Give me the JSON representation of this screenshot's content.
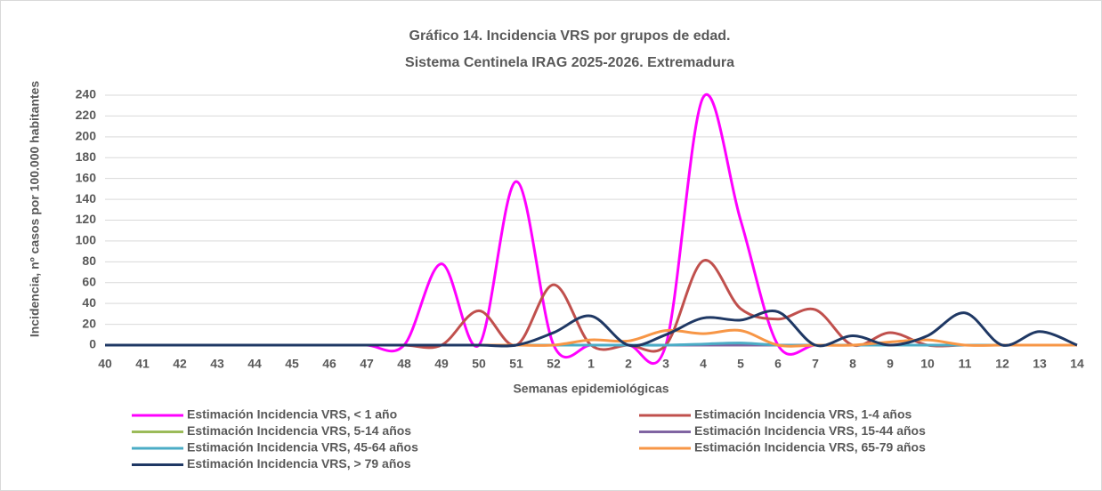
{
  "chart_data": {
    "type": "line",
    "title": "Gráfico 14. Incidencia VRS por grupos de edad.",
    "subtitle": "Sistema Centinela IRAG 2025-2026. Extremadura",
    "x_label": "Semanas epidemiológicas",
    "y_label": "Incidencia, nº casos por 100.000 habitantes",
    "categories": [
      40,
      41,
      42,
      43,
      44,
      45,
      46,
      47,
      48,
      49,
      50,
      51,
      52,
      1,
      2,
      3,
      4,
      5,
      6,
      7,
      8,
      9,
      10,
      11,
      12,
      13,
      14
    ],
    "ylim": [
      0,
      240
    ],
    "yticks": [
      0,
      20,
      40,
      60,
      80,
      100,
      120,
      140,
      160,
      180,
      200,
      220,
      240
    ],
    "grid": true,
    "series": [
      {
        "name": "Estimación Incidencia VRS, < 1 año",
        "color": "#ff00ff",
        "values": [
          0,
          0,
          0,
          0,
          0,
          0,
          0,
          0,
          0,
          78,
          0,
          157,
          0,
          0,
          0,
          0,
          238,
          120,
          0,
          0,
          0,
          0,
          0,
          0,
          0,
          0,
          0
        ]
      },
      {
        "name": "Estimación Incidencia VRS, 1-4 años",
        "color": "#c0504d",
        "values": [
          0,
          0,
          0,
          0,
          0,
          0,
          0,
          0,
          0,
          0,
          33,
          0,
          58,
          0,
          0,
          0,
          81,
          35,
          25,
          34,
          0,
          12,
          0,
          0,
          0,
          0,
          0
        ]
      },
      {
        "name": "Estimación Incidencia VRS, 5-14 años",
        "color": "#9bbb59",
        "values": [
          0,
          0,
          0,
          0,
          0,
          0,
          0,
          0,
          0,
          0,
          0,
          0,
          0,
          0,
          0,
          0,
          0,
          0,
          0,
          0,
          0,
          0,
          0,
          0,
          0,
          0,
          0
        ]
      },
      {
        "name": "Estimación Incidencia VRS, 15-44 años",
        "color": "#8064a2",
        "values": [
          0,
          0,
          0,
          0,
          0,
          0,
          0,
          0,
          0,
          0,
          0,
          0,
          0,
          0,
          0,
          0,
          0,
          0,
          0,
          0,
          0,
          0,
          0,
          0,
          0,
          0,
          0
        ]
      },
      {
        "name": "Estimación Incidencia VRS, 45-64 años",
        "color": "#4bacc6",
        "values": [
          0,
          0,
          0,
          0,
          0,
          0,
          0,
          0,
          0,
          0,
          0,
          0,
          0,
          0,
          0,
          0,
          1,
          2,
          0,
          0,
          0,
          0,
          0,
          0,
          0,
          0,
          0
        ]
      },
      {
        "name": "Estimación Incidencia VRS, 65-79 años",
        "color": "#f79646",
        "values": [
          0,
          0,
          0,
          0,
          0,
          0,
          0,
          0,
          0,
          0,
          0,
          0,
          0,
          5,
          4,
          14,
          11,
          14,
          0,
          0,
          0,
          3,
          5,
          0,
          0,
          0,
          0
        ]
      },
      {
        "name": "Estimación Incidencia VRS, > 79 años",
        "color": "#1f3864",
        "values": [
          0,
          0,
          0,
          0,
          0,
          0,
          0,
          0,
          0,
          0,
          0,
          0,
          12,
          28,
          0,
          10,
          26,
          24,
          32,
          0,
          9,
          0,
          9,
          31,
          0,
          13,
          0
        ]
      }
    ]
  }
}
